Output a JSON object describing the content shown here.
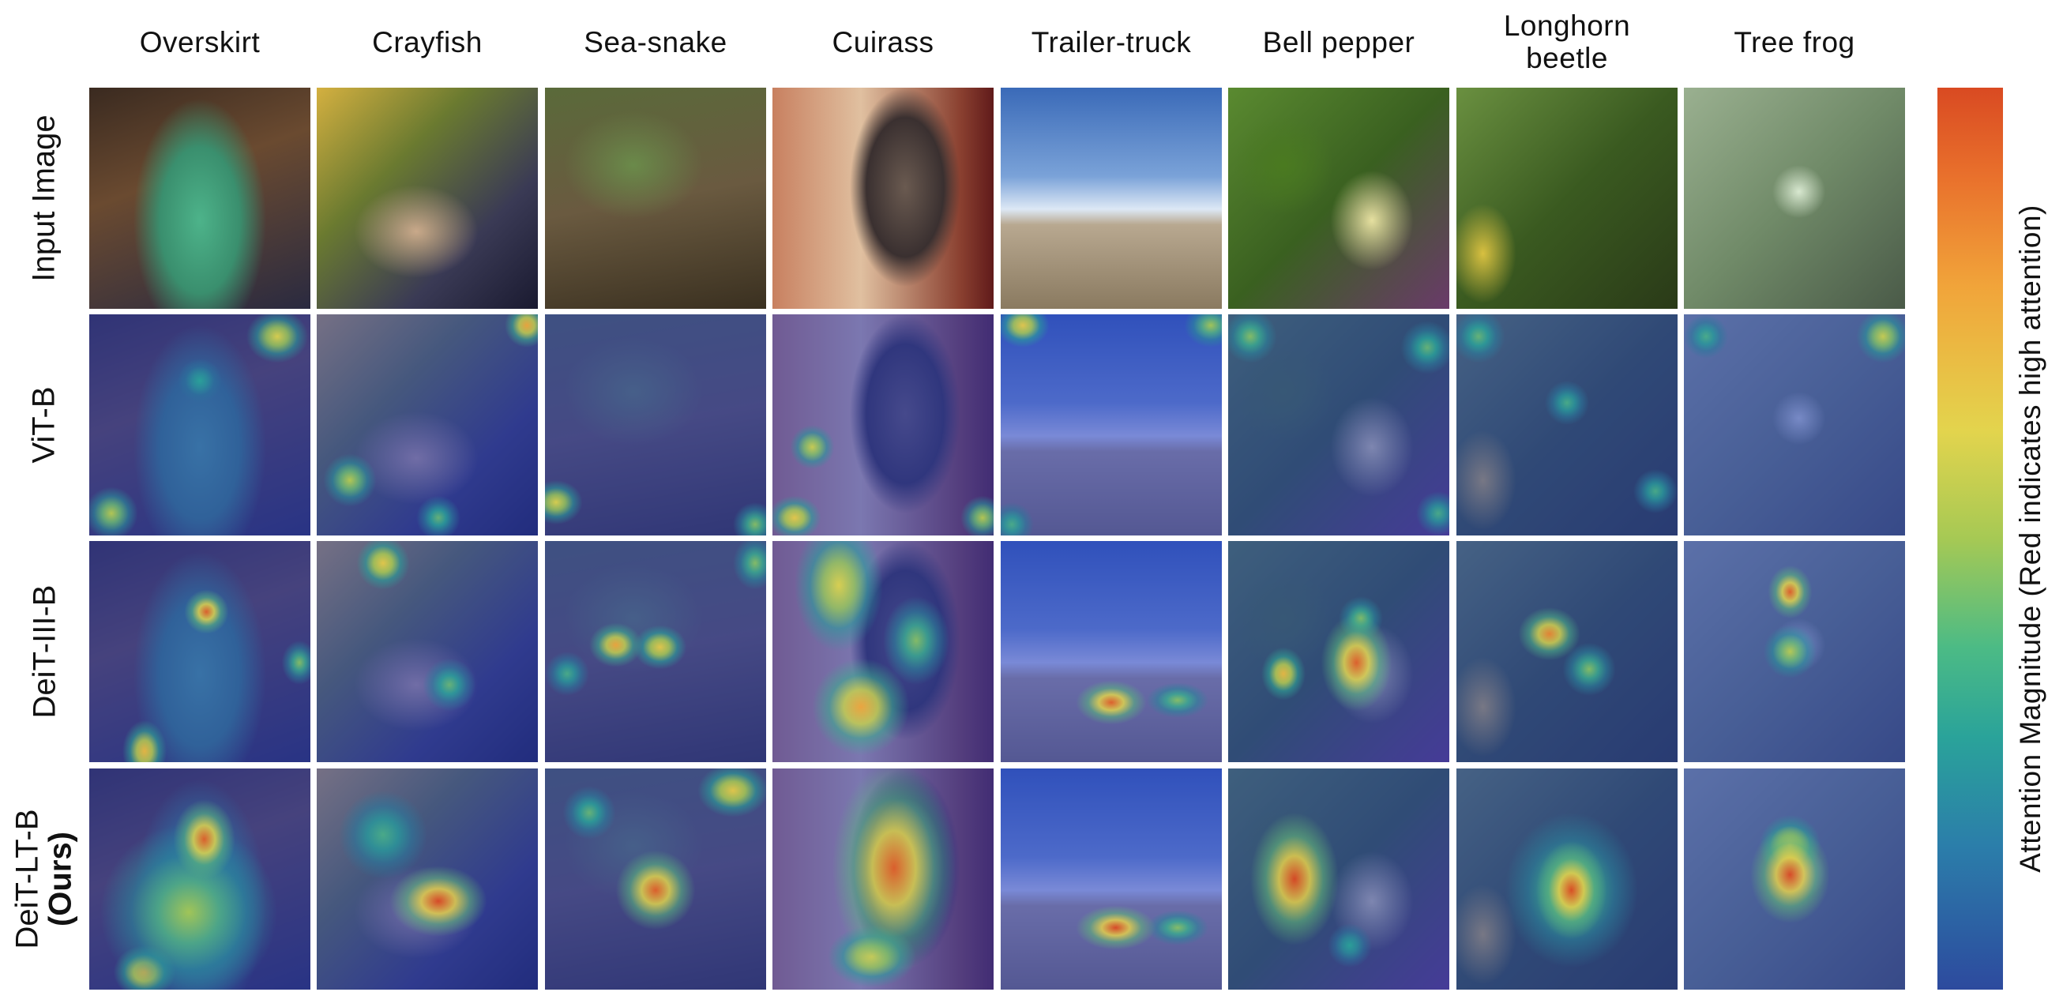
{
  "columns": [
    "Overskirt",
    "Crayfish",
    "Sea-snake",
    "Cuirass",
    "Trailer-truck",
    "Bell pepper",
    "Longhorn\nbeetle",
    "Tree frog"
  ],
  "rows": [
    {
      "label": "Input Image",
      "sublabel": ""
    },
    {
      "label": "ViT-B",
      "sublabel": ""
    },
    {
      "label": "DeiT-III-B",
      "sublabel": ""
    },
    {
      "label": "DeiT-LT-B",
      "sublabel": "(Ours)"
    }
  ],
  "colorbar": {
    "label": "Attention Magnitude (Red indicates high attention)",
    "high_color": "#d94a22",
    "low_color": "#2d4a9e"
  }
}
